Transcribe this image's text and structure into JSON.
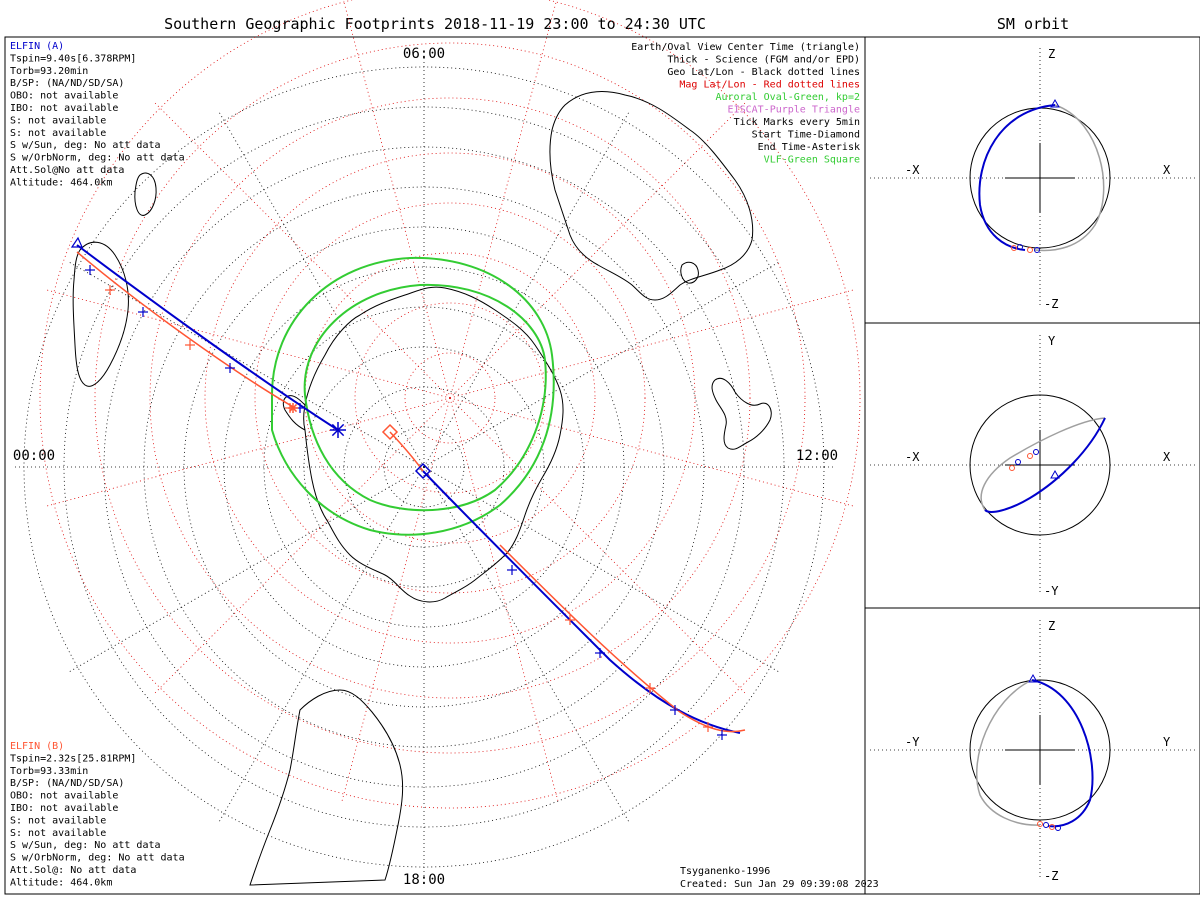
{
  "title": "Southern Geographic Footprints 2018-11-19 23:00 to 24:30 UTC",
  "sm_title": "SM orbit",
  "hour_labels": {
    "top": "06:00",
    "left": "00:00",
    "right": "12:00",
    "bottom": "18:00"
  },
  "legend": [
    {
      "text": "Earth/Oval View Center Time (triangle)",
      "color": "#000000"
    },
    {
      "text": "Thick - Science (FGM and/or EPD)",
      "color": "#000000"
    },
    {
      "text": "Geo Lat/Lon - Black dotted lines",
      "color": "#000000"
    },
    {
      "text": "Mag Lat/Lon - Red dotted lines",
      "color": "#dd0000"
    },
    {
      "text": "Auroral Oval-Green, kp=2",
      "color": "#33cc33"
    },
    {
      "text": "EISCAT-Purple Triangle",
      "color": "#cc66cc"
    },
    {
      "text": "Tick Marks every 5min",
      "color": "#000000"
    },
    {
      "text": "Start Time-Diamond",
      "color": "#000000"
    },
    {
      "text": "End Time-Asterisk",
      "color": "#000000"
    },
    {
      "text": "VLF-Green Square",
      "color": "#33cc33"
    }
  ],
  "spacecraft": [
    {
      "name": "ELFIN (A)",
      "color": "#0000cc",
      "lines": [
        "Tspin=9.40s[6.378RPM]",
        "Torb=93.20min",
        "B/SP: (NA/ND/SD/SA)",
        "OBO: not available",
        "IBO: not available",
        "S: not available",
        "S: not available",
        "S w/Sun, deg: No att data",
        "S w/OrbNorm, deg: No att data",
        "Att.Sol@No att data",
        "Altitude: 464.0km"
      ]
    },
    {
      "name": "ELFIN (B)",
      "color": "#ff5533",
      "lines": [
        "Tspin=2.32s[25.81RPM]",
        "Torb=93.33min",
        "B/SP: (NA/ND/SD/SA)",
        "OBO: not available",
        "IBO: not available",
        "S: not available",
        "S: not available",
        "S w/Sun, deg: No att data",
        "S w/OrbNorm, deg: No att data",
        "Att.Sol@: No att data",
        "Altitude: 464.0km"
      ]
    }
  ],
  "footer": {
    "model": "Tsyganenko-1996",
    "created": "Created: Sun Jan 29 09:39:08 2023"
  },
  "sm_panels": [
    {
      "top": "Z",
      "bottom": "-Z",
      "left": "-X",
      "right": "X"
    },
    {
      "top": "Y",
      "bottom": "-Y",
      "left": "-X",
      "right": "X"
    },
    {
      "top": "Z",
      "bottom": "-Z",
      "left": "-Y",
      "right": "Y"
    }
  ],
  "colors": {
    "sc_a": "#0000cc",
    "sc_b": "#ff5533",
    "oval": "#33cc33",
    "mag_grid": "#dd0000",
    "geo_grid": "#000000",
    "orbit_back": "#a0a0a0"
  }
}
